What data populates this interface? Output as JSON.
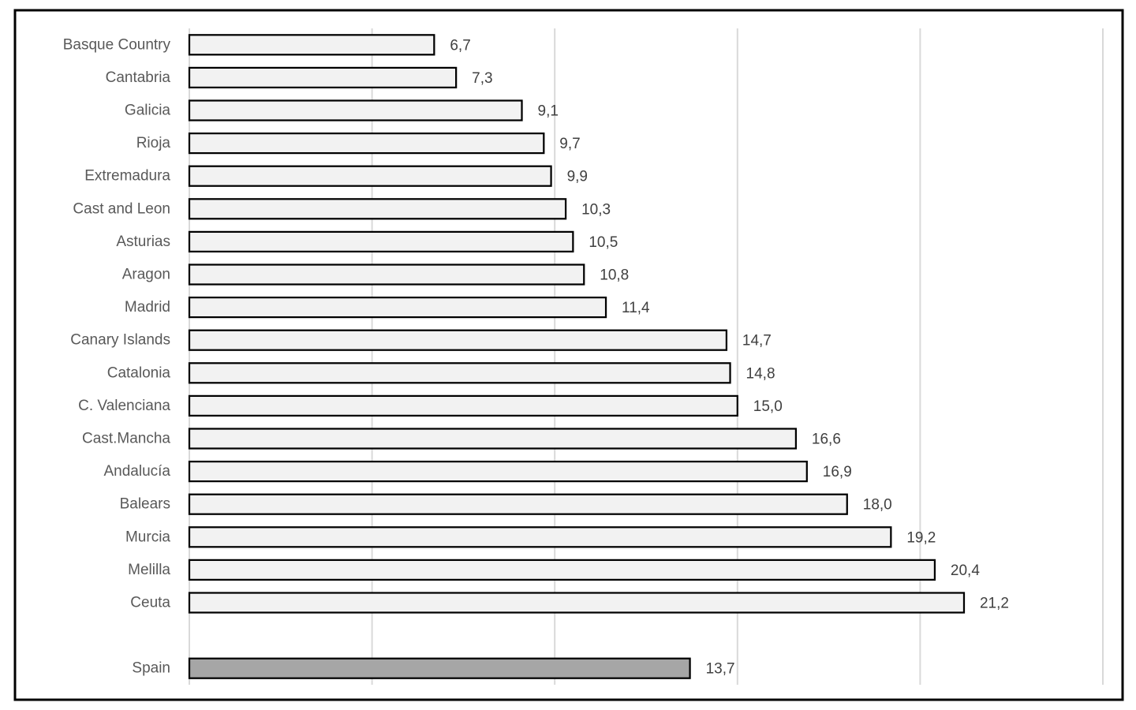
{
  "chart_data": {
    "type": "bar",
    "orientation": "horizontal",
    "title": "",
    "xlabel": "",
    "ylabel": "",
    "xlim": [
      0,
      25
    ],
    "gridline_interval": 5,
    "grid": "vertical-gridlines-only",
    "legend": "none",
    "value_format": "comma-decimal",
    "categories": [
      "Basque Country",
      "Cantabria",
      "Galicia",
      "Rioja",
      "Extremadura",
      "Cast and Leon",
      "Asturias",
      "Aragon",
      "Madrid",
      "Canary Islands",
      "Catalonia",
      "C. Valenciana",
      "Cast.Mancha",
      "Andalucía",
      "Balears",
      "Murcia",
      "Melilla",
      "Ceuta"
    ],
    "values": [
      6.7,
      7.3,
      9.1,
      9.7,
      9.9,
      10.3,
      10.5,
      10.8,
      11.4,
      14.7,
      14.8,
      15.0,
      16.6,
      16.9,
      18.0,
      19.2,
      20.4,
      21.2
    ],
    "value_labels": [
      "6,7",
      "7,3",
      "9,1",
      "9,7",
      "9,9",
      "10,3",
      "10,5",
      "10,8",
      "11,4",
      "14,7",
      "14,8",
      "15,0",
      "16,6",
      "16,9",
      "18,0",
      "19,2",
      "20,4",
      "21,2"
    ],
    "total_row": {
      "label": "Spain",
      "value": 13.7,
      "value_label": "13,7"
    },
    "colors": {
      "background": "#FFFFFF",
      "bar_fill": "#F2F2F2",
      "bar_border": "#000000",
      "total_bar_fill": "#A6A6A6",
      "gridline": "#D9D9D9",
      "category_label": "#595959",
      "value_label": "#404040",
      "frame_border": "#000000"
    }
  }
}
